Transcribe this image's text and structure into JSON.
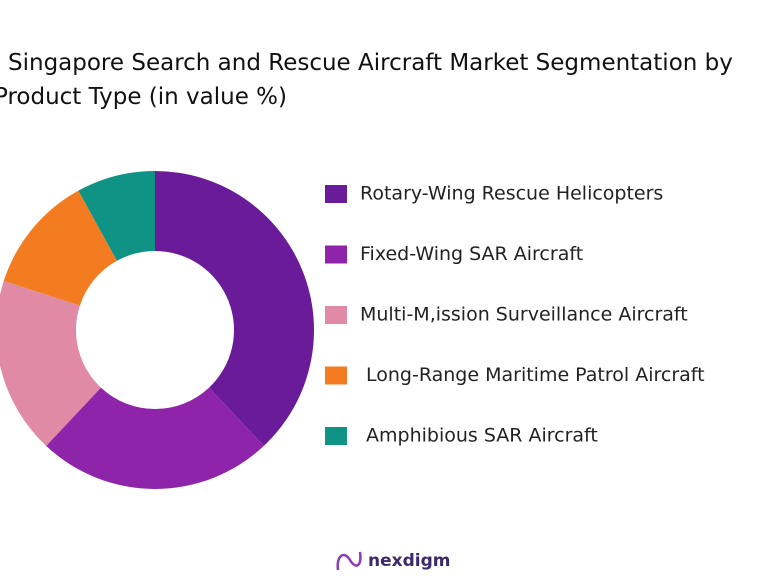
{
  "chart_data": {
    "type": "donut",
    "title": "Singapore Search and Rescue Aircraft Market Segmentation by Product Type (in value %)",
    "categories": [
      "Rotary-Wing Rescue Helicopters",
      "Fixed-Wing SAR Aircraft",
      "Multi-M,ission Surveillance Aircraft",
      "Long-Range Maritime Patrol Aircraft",
      "Amphibious SAR Aircraft"
    ],
    "values": [
      38,
      24,
      18,
      12,
      8
    ],
    "colors": [
      "#6a1b9a",
      "#8e24aa",
      "#e08aa5",
      "#f47c20",
      "#0e9384"
    ]
  },
  "logo": "nexdigm"
}
